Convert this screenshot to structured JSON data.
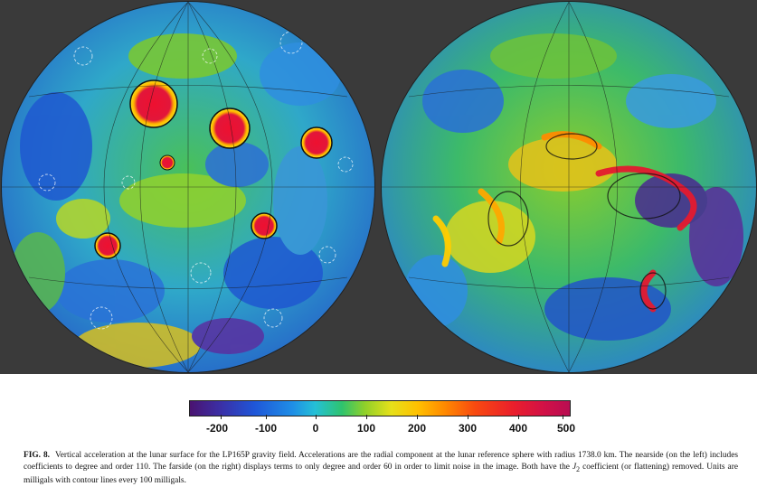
{
  "colorbar": {
    "tick_labels": [
      "-200",
      "-100",
      "0",
      "100",
      "200",
      "300",
      "400",
      "500"
    ]
  },
  "caption": {
    "label": "FIG. 8.",
    "text_before": "Vertical acceleration at the lunar surface for the LP165P gravity field. Accelerations are the radial component at the lunar reference sphere with radius 1738.0 km. The nearside (on the left) includes coefficients to degree and order 110. The farside (on the right) displays terms to only degree and order 60 in order to limit noise in the image. Both have the ",
    "j2_symbol": "J",
    "j2_sub": "2",
    "text_after": " coefficient (or flattening) removed. Units are milligals with contour lines every 100 milligals."
  }
}
